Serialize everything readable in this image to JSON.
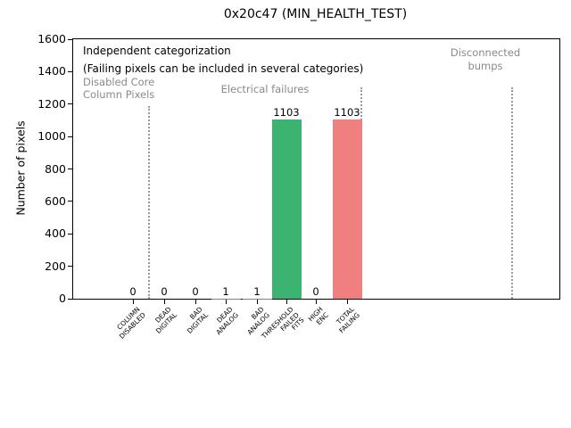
{
  "chart_data": {
    "type": "bar",
    "title": "0x20c47 (MIN_HEALTH_TEST)",
    "xlabel": "",
    "ylabel": "Number of pixels",
    "ylim": [
      0,
      1600
    ],
    "yticks": [
      0,
      200,
      400,
      600,
      800,
      1000,
      1200,
      1400,
      1600
    ],
    "grid": false,
    "legend": null,
    "categories": [
      "COLUMN DISABLED",
      "DEAD DIGITAL",
      "BAD DIGITAL",
      "DEAD ANALOG",
      "BAD ANALOG",
      "THRESHOLD FAILED FITS",
      "HIGH ENC",
      "TOTAL FAILING"
    ],
    "category_lines": [
      [
        "COLUMN",
        "DISABLED"
      ],
      [
        "DEAD",
        "DIGITAL"
      ],
      [
        "BAD",
        "DIGITAL"
      ],
      [
        "DEAD",
        "ANALOG"
      ],
      [
        "BAD",
        "ANALOG"
      ],
      [
        "THRESHOLD",
        "FAILED",
        "FITS"
      ],
      [
        "HIGH",
        "ENC"
      ],
      [
        "TOTAL",
        "FAILING"
      ]
    ],
    "values": [
      0,
      0,
      0,
      1,
      1,
      1103,
      0,
      1103
    ],
    "value_labels": [
      "0",
      "0",
      "0",
      "1",
      "1",
      "1103",
      "0",
      "1103"
    ],
    "bar_colors": [
      "#808080",
      "#808080",
      "#808080",
      "#808080",
      "#808080",
      "#3CB371",
      "#808080",
      "#F08080"
    ],
    "note": [
      "Independent categorization",
      "(Failing pixels can be included in several categories)"
    ],
    "sections": [
      {
        "lines": [
          "Disabled Core",
          "Column Pixels"
        ]
      },
      {
        "lines": [
          "Electrical failures"
        ]
      },
      {
        "lines": [
          "Disconnected",
          "bumps"
        ]
      }
    ],
    "colors": {
      "threshold_failed_bar": "#3CB371",
      "total_failing_bar": "#F08080",
      "section_text": "#8a8a8a",
      "divider": "#9a9a9a",
      "axis_text": "#000000"
    }
  }
}
